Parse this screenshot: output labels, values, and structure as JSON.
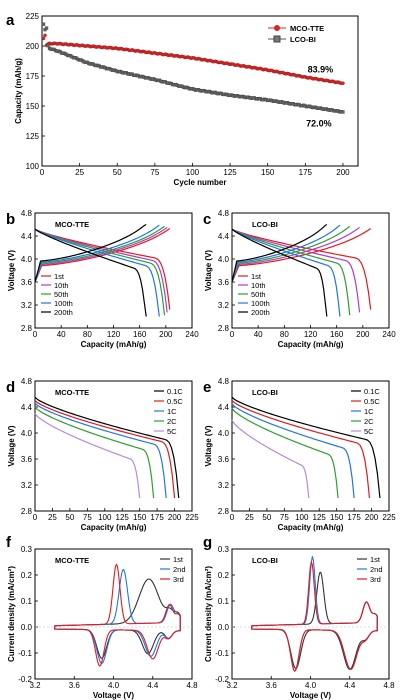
{
  "chart_data": [
    {
      "id": "a",
      "label": "a",
      "type": "scatter",
      "xlabel": "Cycle number",
      "ylabel": "Capacity (mAh/g)",
      "xlim": [
        0,
        210
      ],
      "ylim": [
        100,
        225
      ],
      "xticks": [
        "0",
        "25",
        "50",
        "75",
        "100",
        "125",
        "150",
        "175",
        "200"
      ],
      "yticks": [
        "100",
        "125",
        "150",
        "175",
        "200",
        "225"
      ],
      "legend_position": "top-right",
      "series": [
        {
          "name": "MCO-TTE",
          "color": "#d62728",
          "marker": "circle",
          "x": [
            1,
            2,
            3,
            5,
            10,
            20,
            30,
            50,
            75,
            100,
            125,
            150,
            175,
            200
          ],
          "y": [
            206,
            209,
            201,
            202,
            202,
            201,
            200,
            198,
            194,
            190,
            185,
            180,
            174,
            169
          ]
        },
        {
          "name": "LCO-BI",
          "color": "#555555",
          "marker": "square",
          "x": [
            1,
            2,
            3,
            4,
            5,
            10,
            20,
            30,
            50,
            75,
            100,
            125,
            150,
            175,
            200
          ],
          "y": [
            218,
            214,
            215,
            200,
            198,
            196,
            191,
            186,
            179,
            172,
            164,
            159,
            155,
            150,
            145
          ]
        }
      ],
      "annotations": [
        {
          "text": "83.9%",
          "x": 185,
          "y": 178
        },
        {
          "text": "72.0%",
          "x": 184,
          "y": 133
        }
      ]
    },
    {
      "id": "b",
      "label": "b",
      "type": "line",
      "title": "MCO-TTE",
      "xlabel": "Capacity (mAh/g)",
      "ylabel": "Voltage (V)",
      "xlim": [
        0,
        240
      ],
      "ylim": [
        2.8,
        4.8
      ],
      "xticks": [
        "0",
        "40",
        "80",
        "120",
        "160",
        "200",
        "240"
      ],
      "yticks": [
        "2.8",
        "3.2",
        "3.6",
        "4.0",
        "4.4",
        "4.8"
      ],
      "legend_position": "bottom-left",
      "series": [
        {
          "name": "1st",
          "color": "#e41a1c",
          "capacity": 206
        },
        {
          "name": "10th",
          "color": "#b23cc9",
          "capacity": 202
        },
        {
          "name": "50th",
          "color": "#2ca02c",
          "capacity": 198
        },
        {
          "name": "100th",
          "color": "#1f77e4",
          "capacity": 190
        },
        {
          "name": "200th",
          "color": "#000000",
          "capacity": 170
        }
      ]
    },
    {
      "id": "c",
      "label": "c",
      "type": "line",
      "title": "LCO-BI",
      "xlabel": "Capacity (mAh/g)",
      "ylabel": "Voltage (V)",
      "xlim": [
        0,
        240
      ],
      "ylim": [
        2.8,
        4.8
      ],
      "xticks": [
        "0",
        "40",
        "80",
        "120",
        "160",
        "200",
        "240"
      ],
      "yticks": [
        "2.8",
        "3.2",
        "3.6",
        "4.0",
        "4.4",
        "4.8"
      ],
      "legend_position": "bottom-left",
      "series": [
        {
          "name": "1st",
          "color": "#e41a1c",
          "capacity": 212
        },
        {
          "name": "10th",
          "color": "#b23cc9",
          "capacity": 195
        },
        {
          "name": "50th",
          "color": "#2ca02c",
          "capacity": 180
        },
        {
          "name": "100th",
          "color": "#1f77e4",
          "capacity": 165
        },
        {
          "name": "200th",
          "color": "#000000",
          "capacity": 145
        }
      ]
    },
    {
      "id": "d",
      "label": "d",
      "type": "line",
      "title": "MCO-TTE",
      "xlabel": "Capacity (mAh/g)",
      "ylabel": "Voltage (V)",
      "xlim": [
        0,
        225
      ],
      "ylim": [
        2.8,
        4.8
      ],
      "xticks": [
        "0",
        "25",
        "50",
        "75",
        "100",
        "125",
        "150",
        "175",
        "200",
        "225"
      ],
      "yticks": [
        "2.8",
        "3.2",
        "3.6",
        "4.0",
        "4.4",
        "4.8"
      ],
      "legend_position": "top-right",
      "series": [
        {
          "name": "0.1C",
          "color": "#000000",
          "capacity": 206,
          "v0": 4.55,
          "plateau": 3.85
        },
        {
          "name": "0.5C",
          "color": "#e41a1c",
          "capacity": 200,
          "v0": 4.5,
          "plateau": 3.82
        },
        {
          "name": "1C",
          "color": "#1f77e4",
          "capacity": 188,
          "v0": 4.46,
          "plateau": 3.78
        },
        {
          "name": "2C",
          "color": "#2ca02c",
          "capacity": 170,
          "v0": 4.4,
          "plateau": 3.7
        },
        {
          "name": "5C",
          "color": "#b38be0",
          "capacity": 150,
          "v0": 4.3,
          "plateau": 3.55
        }
      ]
    },
    {
      "id": "e",
      "label": "e",
      "type": "line",
      "title": "LCO-BI",
      "xlabel": "Capacity (mAh/g)",
      "ylabel": "Voltage (V)",
      "xlim": [
        0,
        225
      ],
      "ylim": [
        2.8,
        4.8
      ],
      "xticks": [
        "0",
        "25",
        "50",
        "75",
        "100",
        "125",
        "150",
        "175",
        "200",
        "225"
      ],
      "yticks": [
        "2.8",
        "3.2",
        "3.6",
        "4.0",
        "4.4",
        "4.8"
      ],
      "legend_position": "top-right",
      "series": [
        {
          "name": "0.1C",
          "color": "#000000",
          "capacity": 212,
          "v0": 4.55,
          "plateau": 3.85
        },
        {
          "name": "0.5C",
          "color": "#e41a1c",
          "capacity": 197,
          "v0": 4.5,
          "plateau": 3.8
        },
        {
          "name": "1C",
          "color": "#1f77e4",
          "capacity": 175,
          "v0": 4.45,
          "plateau": 3.72
        },
        {
          "name": "2C",
          "color": "#2ca02c",
          "capacity": 152,
          "v0": 4.38,
          "plateau": 3.62
        },
        {
          "name": "5C",
          "color": "#b38be0",
          "capacity": 110,
          "v0": 4.2,
          "plateau": 3.45
        }
      ]
    },
    {
      "id": "f",
      "label": "f",
      "type": "line",
      "title": "MCO-TTE",
      "xlabel": "Voltage (V)",
      "ylabel": "Current density (mA/cm²)",
      "xlim": [
        3.2,
        4.8
      ],
      "ylim": [
        -0.2,
        0.3
      ],
      "xticks": [
        "3.2",
        "3.6",
        "4.0",
        "4.4",
        "4.8"
      ],
      "yticks": [
        "-0.2",
        "-0.1",
        "0.0",
        "0.1",
        "0.2",
        "0.3"
      ],
      "legend_position": "top-right",
      "series": [
        {
          "name": "1st",
          "color": "#333333",
          "ox": [
            [
              4.36,
              0.17,
              0.14
            ],
            [
              4.58,
              0.04,
              0.06
            ],
            [
              4.66,
              0.03,
              0.04
            ]
          ],
          "rd": [
            [
              3.88,
              -0.11,
              0.07
            ],
            [
              4.35,
              -0.09,
              0.08
            ],
            [
              4.56,
              -0.03,
              0.05
            ]
          ]
        },
        {
          "name": "2nd",
          "color": "#1f77e4",
          "ox": [
            [
              4.1,
              0.21,
              0.06
            ],
            [
              4.58,
              0.07,
              0.05
            ],
            [
              4.66,
              0.03,
              0.04
            ]
          ],
          "rd": [
            [
              3.88,
              -0.13,
              0.07
            ],
            [
              4.38,
              -0.1,
              0.08
            ],
            [
              4.56,
              -0.03,
              0.05
            ]
          ]
        },
        {
          "name": "3rd",
          "color": "#e41a1c",
          "ox": [
            [
              4.03,
              0.23,
              0.05
            ],
            [
              4.57,
              0.07,
              0.05
            ],
            [
              4.66,
              0.03,
              0.04
            ]
          ],
          "rd": [
            [
              3.86,
              -0.14,
              0.06
            ],
            [
              4.4,
              -0.11,
              0.08
            ],
            [
              4.56,
              -0.03,
              0.05
            ]
          ]
        }
      ]
    },
    {
      "id": "g",
      "label": "g",
      "type": "line",
      "title": "LCO-BI",
      "xlabel": "Voltage (V)",
      "ylabel": "Current density (mA/cm²)",
      "xlim": [
        3.2,
        4.8
      ],
      "ylim": [
        -0.2,
        0.3
      ],
      "xticks": [
        "3.2",
        "3.6",
        "4.0",
        "4.4",
        "4.8"
      ],
      "yticks": [
        "-0.2",
        "-0.1",
        "0.0",
        "0.1",
        "0.2",
        "0.3"
      ],
      "legend_position": "top-right",
      "series": [
        {
          "name": "1st",
          "color": "#333333",
          "ox": [
            [
              4.1,
              0.2,
              0.05
            ],
            [
              4.57,
              0.08,
              0.05
            ],
            [
              4.66,
              0.03,
              0.04
            ]
          ],
          "rd": [
            [
              3.85,
              -0.15,
              0.07
            ],
            [
              4.4,
              -0.15,
              0.09
            ],
            [
              4.56,
              -0.03,
              0.05
            ]
          ]
        },
        {
          "name": "2nd",
          "color": "#1f77e4",
          "ox": [
            [
              4.02,
              0.26,
              0.04
            ],
            [
              4.57,
              0.08,
              0.05
            ],
            [
              4.66,
              0.03,
              0.04
            ]
          ],
          "rd": [
            [
              3.84,
              -0.16,
              0.06
            ],
            [
              4.41,
              -0.15,
              0.09
            ],
            [
              4.56,
              -0.03,
              0.05
            ]
          ]
        },
        {
          "name": "3rd",
          "color": "#e41a1c",
          "ox": [
            [
              4.01,
              0.24,
              0.04
            ],
            [
              4.57,
              0.08,
              0.05
            ],
            [
              4.66,
              0.03,
              0.04
            ]
          ],
          "rd": [
            [
              3.84,
              -0.16,
              0.06
            ],
            [
              4.41,
              -0.15,
              0.09
            ],
            [
              4.56,
              -0.03,
              0.05
            ]
          ]
        }
      ]
    }
  ]
}
